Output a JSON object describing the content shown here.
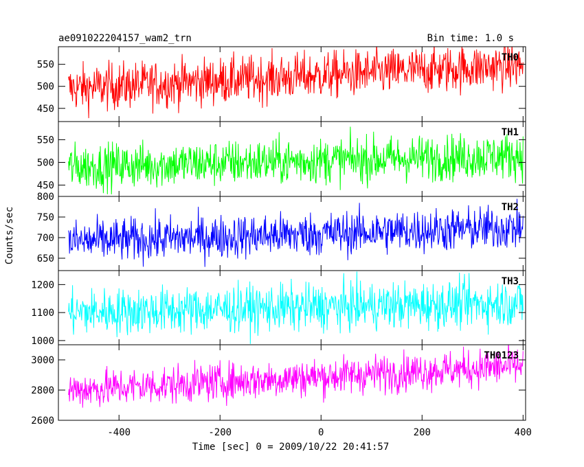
{
  "header": {
    "title": "ae091022204157_wam2_trn",
    "bin_time": "Bin time: 1.0 s"
  },
  "chart_data": {
    "type": "line",
    "xlabel": "Time [sec] 0 = 2009/10/22 20:41:57",
    "ylabel": "Counts/sec",
    "xlim": [
      -520,
      405
    ],
    "x_ticks": [
      -400,
      -200,
      0,
      200,
      400
    ],
    "x_range": [
      -500,
      400
    ],
    "bin_time_s": 1.0,
    "panels": [
      {
        "name": "TH0",
        "color": "#ff0000",
        "ylim": [
          420,
          590
        ],
        "y_ticks": [
          450,
          500,
          550
        ],
        "trend": {
          "start": 495,
          "end": 548
        },
        "noise_amplitude": 38
      },
      {
        "name": "TH1",
        "color": "#00ff00",
        "ylim": [
          425,
          590
        ],
        "y_ticks": [
          450,
          500,
          550
        ],
        "trend": {
          "start": 490,
          "end": 515
        },
        "noise_amplitude": 36
      },
      {
        "name": "TH2",
        "color": "#0000ff",
        "ylim": [
          620,
          800
        ],
        "y_ticks": [
          650,
          700,
          750,
          800
        ],
        "trend": {
          "start": 690,
          "end": 725
        },
        "noise_amplitude": 38
      },
      {
        "name": "TH3",
        "color": "#00ffff",
        "ylim": [
          985,
          1250
        ],
        "y_ticks": [
          1000,
          1100,
          1200
        ],
        "trend": {
          "start": 1100,
          "end": 1135
        },
        "noise_amplitude": 60
      },
      {
        "name": "TH0123",
        "color": "#ff00ff",
        "ylim": [
          2600,
          3100
        ],
        "y_ticks": [
          2600,
          2800,
          3000
        ],
        "trend": {
          "start": 2800,
          "end": 2960
        },
        "noise_amplitude": 90
      }
    ]
  }
}
